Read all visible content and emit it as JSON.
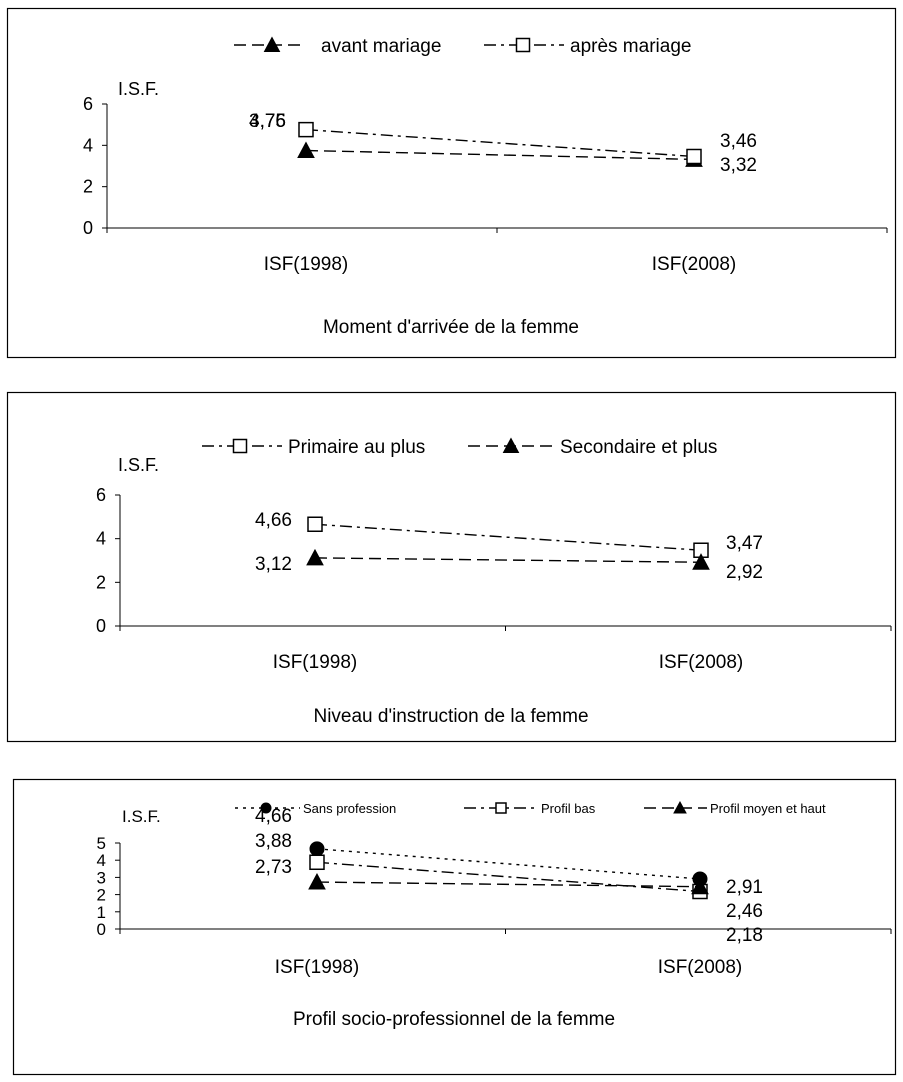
{
  "chart_data": [
    {
      "type": "line",
      "title": "",
      "xlabel": "Moment d'arrivée de la femme",
      "ylabel": "I.S.F.",
      "categories": [
        "ISF(1998)",
        "ISF(2008)"
      ],
      "ylim": [
        0,
        6
      ],
      "yticks": [
        "0",
        "2",
        "4",
        "6"
      ],
      "grid": false,
      "legend_position": "top",
      "series": [
        {
          "name": "avant mariage",
          "marker": "triangle-filled",
          "dash": "dash",
          "values": [
            3.75,
            3.32
          ],
          "labels": [
            "3,75",
            "3,32"
          ]
        },
        {
          "name": "après mariage",
          "marker": "square-open",
          "dash": "dashdot",
          "values": [
            4.76,
            3.46
          ],
          "labels": [
            "4,76",
            "3,46"
          ]
        }
      ]
    },
    {
      "type": "line",
      "title": "",
      "xlabel": "Niveau d'instruction de la femme",
      "ylabel": "I.S.F.",
      "categories": [
        "ISF(1998)",
        "ISF(2008)"
      ],
      "ylim": [
        0,
        6
      ],
      "yticks": [
        "0",
        "2",
        "4",
        "6"
      ],
      "grid": false,
      "legend_position": "top",
      "series": [
        {
          "name": "Primaire au plus",
          "marker": "square-open",
          "dash": "dashdot",
          "values": [
            4.66,
            3.47
          ],
          "labels": [
            "4,66",
            "3,47"
          ]
        },
        {
          "name": "Secondaire et plus",
          "marker": "triangle-filled",
          "dash": "dash",
          "values": [
            3.12,
            2.92
          ],
          "labels": [
            "3,12",
            "2,92"
          ]
        }
      ]
    },
    {
      "type": "line",
      "title": "",
      "xlabel": "Profil socio-professionnel de la femme",
      "ylabel": "I.S.F.",
      "categories": [
        "ISF(1998)",
        "ISF(2008)"
      ],
      "ylim": [
        0,
        5
      ],
      "yticks": [
        "0",
        "1",
        "2",
        "3",
        "4",
        "5"
      ],
      "grid": false,
      "legend_position": "top",
      "series": [
        {
          "name": "Sans profession",
          "marker": "circle-filled",
          "dash": "dot",
          "values": [
            4.66,
            2.91
          ],
          "labels": [
            "4,66",
            "2,91"
          ]
        },
        {
          "name": "Profil bas",
          "marker": "square-open",
          "dash": "dashdot",
          "values": [
            3.88,
            2.18
          ],
          "labels": [
            "3,88",
            "2,18"
          ]
        },
        {
          "name": "Profil moyen et haut",
          "marker": "triangle-filled",
          "dash": "dash",
          "values": [
            2.73,
            2.46
          ],
          "labels": [
            "2,73",
            "2,46"
          ]
        }
      ]
    }
  ]
}
